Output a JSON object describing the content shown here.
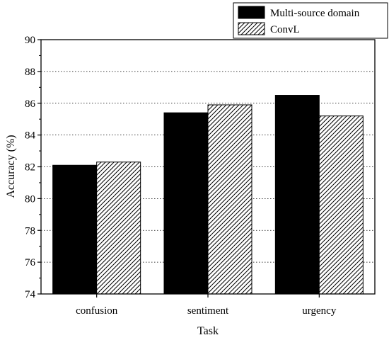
{
  "chart_data": {
    "type": "bar",
    "title": "",
    "xlabel": "Task",
    "ylabel": "Accuracy (%)",
    "categories": [
      "confusion",
      "sentiment",
      "urgency"
    ],
    "series": [
      {
        "name": "Multi-source domain",
        "values": [
          82.1,
          85.4,
          86.5
        ],
        "fill": "solid",
        "color": "#000000"
      },
      {
        "name": "ConvL",
        "values": [
          82.3,
          85.9,
          85.2
        ],
        "fill": "hatched",
        "color": "#000000"
      }
    ],
    "ylim": [
      74,
      90
    ],
    "yticks": [
      74,
      76,
      78,
      80,
      82,
      84,
      86,
      88,
      90
    ],
    "ytick_labels": [
      "74",
      "76",
      "78",
      "80",
      "82",
      "84",
      "86",
      "88",
      "90"
    ],
    "grid": "horizontal-dotted",
    "legend": "top-right"
  }
}
